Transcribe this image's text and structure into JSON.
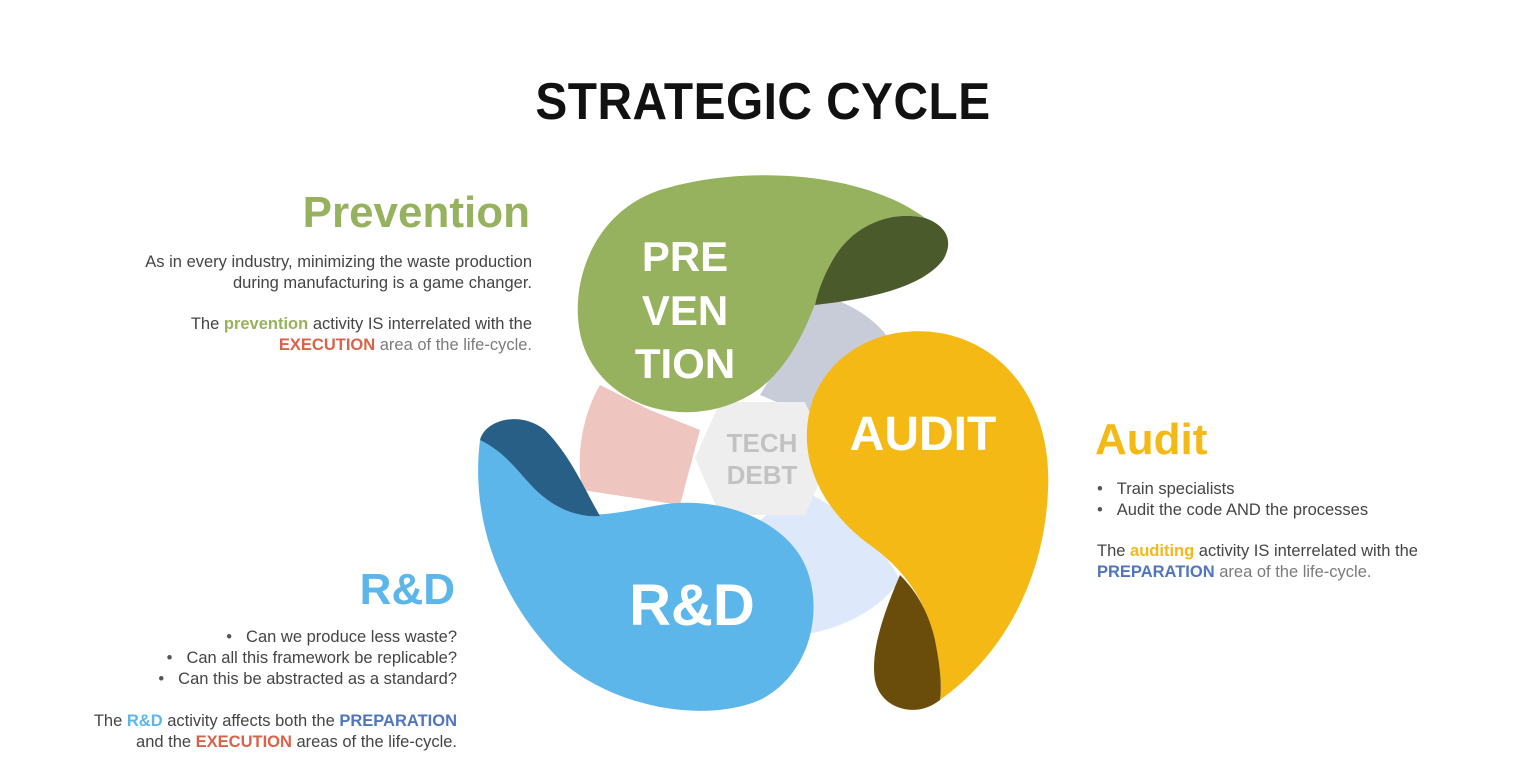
{
  "title": "STRATEGIC CYCLE",
  "center_label": [
    "TECH",
    "DEBT"
  ],
  "petals": {
    "prevention": {
      "lines": [
        "PRE",
        "VEN",
        "TION"
      ],
      "color": "#97b25e",
      "accent": "#4a5a2a"
    },
    "audit": {
      "label": "AUDIT",
      "color": "#f4b914",
      "accent": "#6b4d0b"
    },
    "rd": {
      "label": "R&D",
      "color": "#5db6ea",
      "accent": "#285f87"
    }
  },
  "colors": {
    "execution": "#d9634a",
    "preparation": "#4f75be",
    "prevention": "#97b25e",
    "audit": "#f4b914",
    "rd": "#5db6ea"
  },
  "prevention": {
    "heading": "Prevention",
    "desc_line1": "As in every industry, minimizing the waste production",
    "desc_line2": "during manufacturing is a game changer.",
    "rel_pre": "The ",
    "rel_kw": "prevention",
    "rel_mid": " activity IS interrelated with the",
    "rel_area": "EXECUTION",
    "rel_post": " area of the life-cycle."
  },
  "audit": {
    "heading": "Audit",
    "bullets": [
      "Train specialists",
      "Audit the code AND the processes"
    ],
    "rel_pre": "The ",
    "rel_kw": "auditing",
    "rel_mid": " activity IS interrelated with the",
    "rel_area": "PREPARATION",
    "rel_post": " area of the life-cycle."
  },
  "rd": {
    "heading": "R&D",
    "bullets": [
      "Can we produce less waste?",
      "Can all this framework be replicable?",
      "Can this be abstracted as a standard?"
    ],
    "rel_pre": "The ",
    "rel_kw": "R&D",
    "rel_mid": " activity affects both the ",
    "rel_area1": "PREPARATION",
    "rel_line2_pre": "and the ",
    "rel_area2": "EXECUTION",
    "rel_post": " areas of the life-cycle."
  }
}
